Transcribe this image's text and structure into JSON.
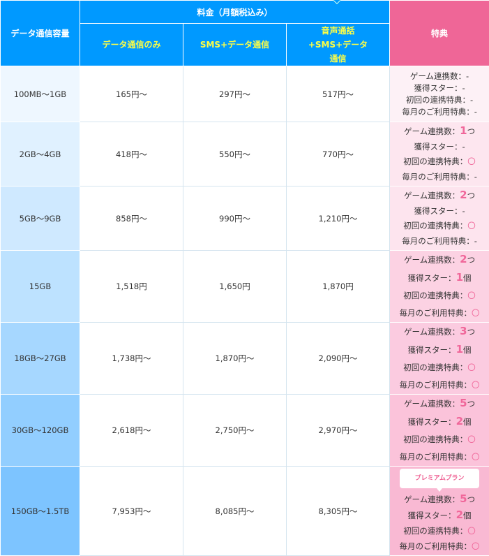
{
  "header": {
    "capacity": "データ通信容量",
    "price_group": "料金（月額税込み）",
    "perks": "特典",
    "plans": [
      "データ通信のみ",
      "SMS+データ通信",
      "音声通話+SMS+データ通信"
    ]
  },
  "colors": {
    "header_blue": "#0099ff",
    "header_pink": "#ef6697",
    "highlight": "#f0679a",
    "sub_header_text": "#ffff44"
  },
  "premium_badge": "プレミアムプラン",
  "perk_labels": [
    "ゲーム連携数：",
    "獲得スター：",
    "初回の連携特典：",
    "毎月のご利用特典："
  ],
  "rows": [
    {
      "capacity": "100MB～1GB",
      "prices": [
        "165円～",
        "297円～",
        "517円～"
      ],
      "perks": [
        {
          "v": "-",
          "u": ""
        },
        {
          "v": "-",
          "u": ""
        },
        {
          "v": "-",
          "u": ""
        },
        {
          "v": "-",
          "u": ""
        }
      ]
    },
    {
      "capacity": "2GB～4GB",
      "prices": [
        "418円～",
        "550円～",
        "770円～"
      ],
      "perks": [
        {
          "v": "1",
          "u": "つ"
        },
        {
          "v": "-",
          "u": ""
        },
        {
          "v": "〇",
          "u": ""
        },
        {
          "v": "-",
          "u": ""
        }
      ]
    },
    {
      "capacity": "5GB～9GB",
      "prices": [
        "858円～",
        "990円～",
        "1,210円～"
      ],
      "perks": [
        {
          "v": "2",
          "u": "つ"
        },
        {
          "v": "-",
          "u": ""
        },
        {
          "v": "〇",
          "u": ""
        },
        {
          "v": "-",
          "u": ""
        }
      ]
    },
    {
      "capacity": "15GB",
      "prices": [
        "1,518円",
        "1,650円",
        "1,870円"
      ],
      "perks": [
        {
          "v": "2",
          "u": "つ"
        },
        {
          "v": "1",
          "u": "個"
        },
        {
          "v": "〇",
          "u": ""
        },
        {
          "v": "〇",
          "u": ""
        }
      ]
    },
    {
      "capacity": "18GB～27GB",
      "prices": [
        "1,738円～",
        "1,870円～",
        "2,090円～"
      ],
      "perks": [
        {
          "v": "3",
          "u": "つ"
        },
        {
          "v": "1",
          "u": "個"
        },
        {
          "v": "〇",
          "u": ""
        },
        {
          "v": "〇",
          "u": ""
        }
      ]
    },
    {
      "capacity": "30GB～120GB",
      "prices": [
        "2,618円～",
        "2,750円～",
        "2,970円～"
      ],
      "perks": [
        {
          "v": "5",
          "u": "つ"
        },
        {
          "v": "2",
          "u": "個"
        },
        {
          "v": "〇",
          "u": ""
        },
        {
          "v": "〇",
          "u": ""
        }
      ]
    },
    {
      "capacity": "150GB～1.5TB",
      "prices": [
        "7,953円～",
        "8,085円～",
        "8,305円～"
      ],
      "perks": [
        {
          "v": "5",
          "u": "つ"
        },
        {
          "v": "2",
          "u": "個"
        },
        {
          "v": "〇",
          "u": ""
        },
        {
          "v": "〇",
          "u": ""
        }
      ],
      "premium": true
    }
  ]
}
